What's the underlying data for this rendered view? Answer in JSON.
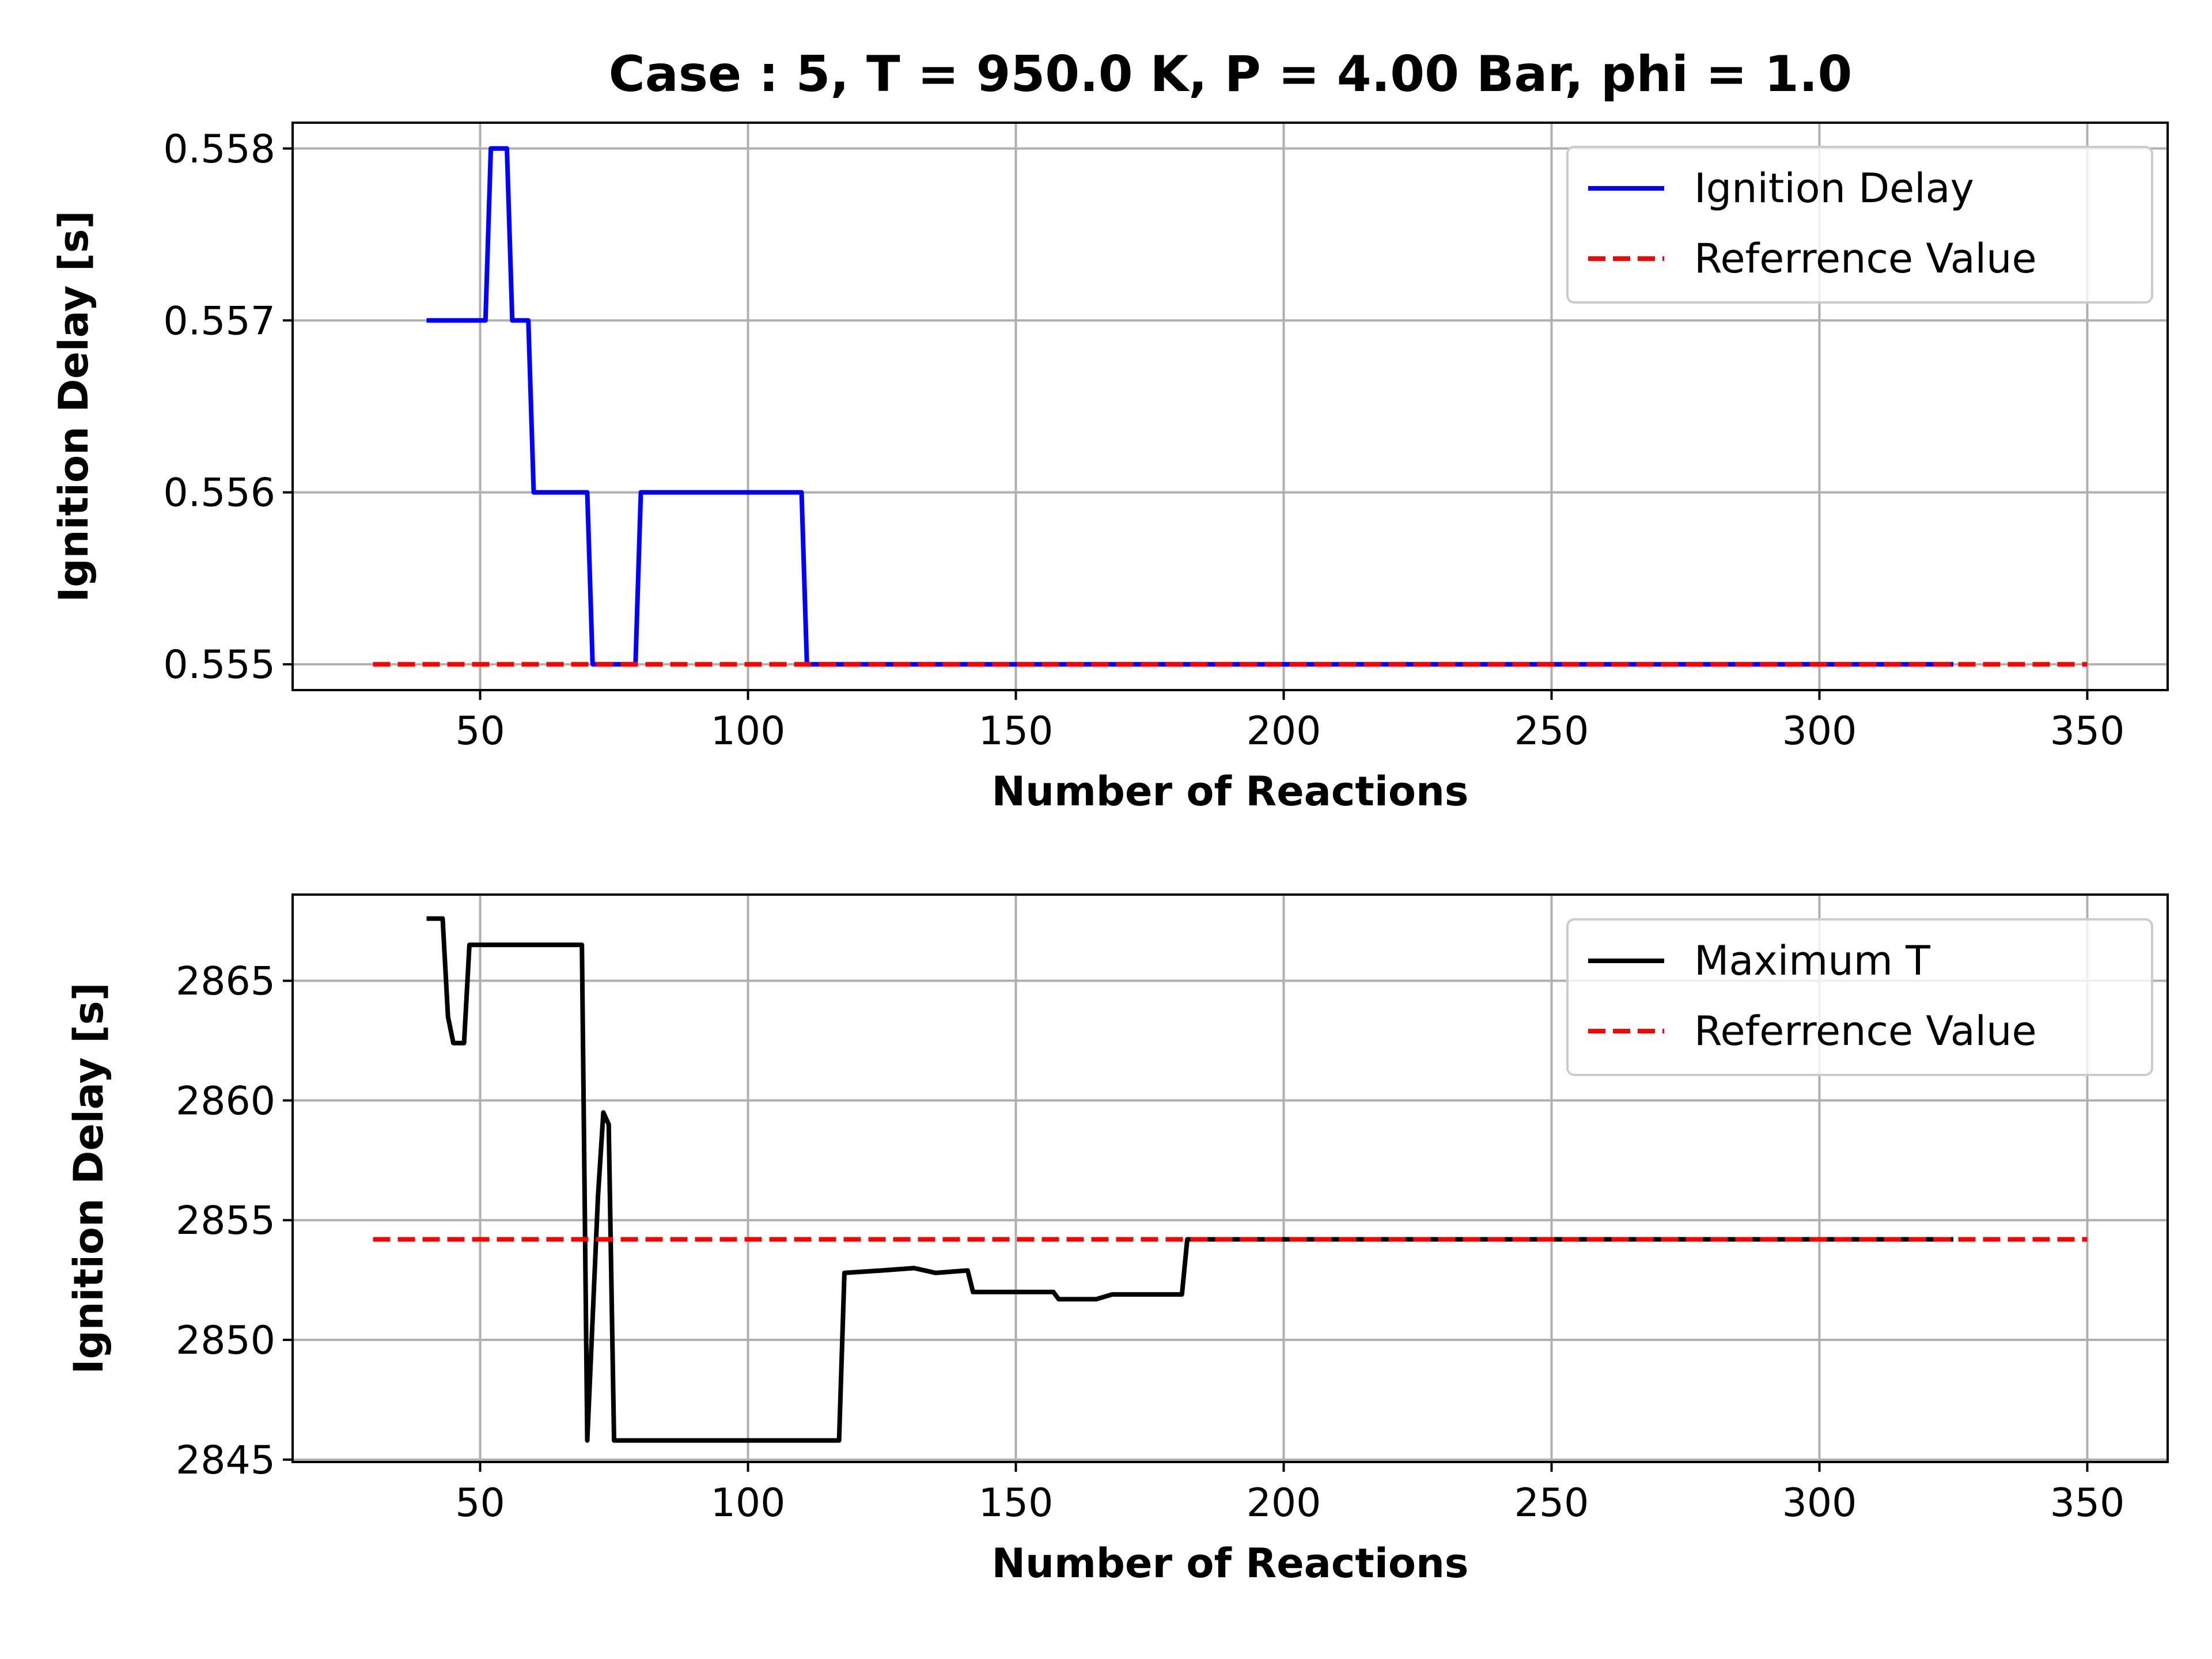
{
  "chart_data": [
    {
      "type": "line",
      "title": "Case : 5, T = 950.0 K, P = 4.00 Bar, phi = 1.0",
      "xlabel": "Number of Reactions",
      "ylabel": "Ignition Delay [s]",
      "xlim": [
        15,
        365
      ],
      "ylim": [
        0.55485,
        0.55815
      ],
      "xticks": [
        50,
        100,
        150,
        200,
        250,
        300,
        350
      ],
      "yticks": [
        0.555,
        0.556,
        0.557,
        0.558
      ],
      "ytick_labels": [
        "0.555",
        "0.556",
        "0.557",
        "0.558"
      ],
      "grid": true,
      "legend_position": "top-right",
      "series": [
        {
          "name": "Ignition Delay",
          "color": "#0000ff",
          "style": "solid",
          "x": [
            40,
            51,
            52,
            55,
            56,
            59,
            60,
            70,
            71,
            79,
            80,
            110,
            111,
            325
          ],
          "y": [
            0.557,
            0.557,
            0.558,
            0.558,
            0.557,
            0.557,
            0.556,
            0.556,
            0.555,
            0.555,
            0.556,
            0.556,
            0.555,
            0.555
          ]
        },
        {
          "name": "Referrence Value",
          "color": "#ff0000",
          "style": "dashed",
          "x": [
            30,
            350
          ],
          "y": [
            0.555,
            0.555
          ]
        }
      ]
    },
    {
      "type": "line",
      "xlabel": "Number of Reactions",
      "ylabel": "Ignition Delay [s]",
      "xlim": [
        15,
        365
      ],
      "ylim": [
        2844.9,
        2868.6
      ],
      "xticks": [
        50,
        100,
        150,
        200,
        250,
        300,
        350
      ],
      "yticks": [
        2845,
        2850,
        2855,
        2860,
        2865
      ],
      "ytick_labels": [
        "2845",
        "2850",
        "2855",
        "2860",
        "2865"
      ],
      "grid": true,
      "legend_position": "top-right",
      "series": [
        {
          "name": "Maximum T",
          "color": "#000000",
          "style": "solid",
          "x": [
            40,
            43,
            44,
            45,
            47,
            48,
            69,
            70,
            72,
            73,
            74,
            75,
            117,
            118,
            125,
            131,
            135,
            141,
            142,
            150,
            157,
            158,
            165,
            168,
            181,
            182,
            325
          ],
          "y": [
            2867.6,
            2867.6,
            2863.5,
            2862.4,
            2862.4,
            2866.5,
            2866.5,
            2845.8,
            2856.0,
            2859.5,
            2859.0,
            2845.8,
            2845.8,
            2852.8,
            2852.9,
            2853.0,
            2852.8,
            2852.9,
            2852.0,
            2852.0,
            2852.0,
            2851.7,
            2851.7,
            2851.9,
            2851.9,
            2854.2,
            2854.2
          ]
        },
        {
          "name": "Referrence Value",
          "color": "#ff0000",
          "style": "dashed",
          "x": [
            30,
            350
          ],
          "y": [
            2854.2,
            2854.2
          ]
        }
      ]
    }
  ]
}
